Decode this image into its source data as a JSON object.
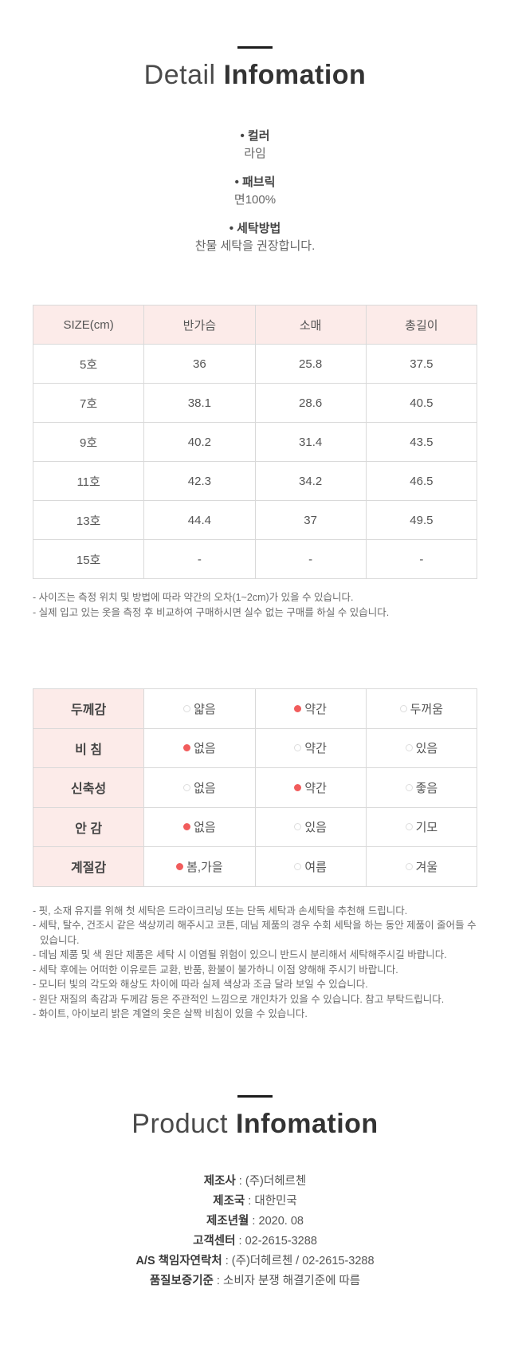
{
  "colors": {
    "header_pink": "#fcebe9",
    "radio_red": "#f15c5c",
    "title_dark": "#333333",
    "body_gray": "#555555"
  },
  "detail_section": {
    "title_light": "Detail",
    "title_bold": "Infomation",
    "specs": [
      {
        "label": "• 컬러",
        "value": "라임"
      },
      {
        "label": "• 패브릭",
        "value": "면100%"
      },
      {
        "label": "• 세탁방법",
        "value": "찬물 세탁을 권장합니다."
      }
    ]
  },
  "size_table": {
    "headers": [
      "SIZE(cm)",
      "반가슴",
      "소매",
      "총길이"
    ],
    "rows": [
      [
        "5호",
        "36",
        "25.8",
        "37.5"
      ],
      [
        "7호",
        "38.1",
        "28.6",
        "40.5"
      ],
      [
        "9호",
        "40.2",
        "31.4",
        "43.5"
      ],
      [
        "11호",
        "42.3",
        "34.2",
        "46.5"
      ],
      [
        "13호",
        "44.4",
        "37",
        "49.5"
      ],
      [
        "15호",
        "-",
        "-",
        "-"
      ]
    ],
    "notes": [
      "- 사이즈는 측정 위치 및 방법에 따라 약간의 오차(1~2cm)가 있을 수 있습니다.",
      "- 실제 입고 있는 옷을 측정 후 비교하여 구매하시면 실수 없는 구매를 하실 수 있습니다."
    ]
  },
  "fabric_table": {
    "rows": [
      {
        "label": "두께감",
        "options": [
          {
            "text": "얇음",
            "selected": false
          },
          {
            "text": "약간",
            "selected": true
          },
          {
            "text": "두꺼움",
            "selected": false
          }
        ]
      },
      {
        "label": "비 침",
        "options": [
          {
            "text": "없음",
            "selected": true
          },
          {
            "text": "약간",
            "selected": false
          },
          {
            "text": "있음",
            "selected": false
          }
        ]
      },
      {
        "label": "신축성",
        "options": [
          {
            "text": "없음",
            "selected": false
          },
          {
            "text": "약간",
            "selected": true
          },
          {
            "text": "좋음",
            "selected": false
          }
        ]
      },
      {
        "label": "안 감",
        "options": [
          {
            "text": "없음",
            "selected": true
          },
          {
            "text": "있음",
            "selected": false
          },
          {
            "text": "기모",
            "selected": false
          }
        ]
      },
      {
        "label": "계절감",
        "options": [
          {
            "text": "봄,가을",
            "selected": true
          },
          {
            "text": "여름",
            "selected": false
          },
          {
            "text": "겨울",
            "selected": false
          }
        ]
      }
    ]
  },
  "care_notes": [
    "- 핏, 소재 유지를 위해 첫 세탁은 드라이크리닝 또는 단독 세탁과 손세탁을 추천해 드립니다.",
    "- 세탁, 탈수, 건조시 같은 색상끼리 해주시고 코튼, 데님 제품의 경우 수회 세탁을 하는 동안 제품이 줄어들 수 있습니다.",
    "- 데님 제품 및 색 원단 제품은 세탁 시 이염될 위험이 있으니 반드시 분리해서 세탁해주시길 바랍니다.",
    "- 세탁 후에는 어떠한 이유로든 교환, 반품, 환불이 불가하니 이점 양해해 주시기 바랍니다.",
    "- 모니터 빛의 각도와 해상도 차이에 따라 실제 색상과 조금 달라 보일 수 있습니다.",
    "- 원단 재질의 촉감과 두께감 등은 주관적인 느낌으로 개인차가 있을 수 있습니다. 참고 부탁드립니다.",
    "- 화이트, 아이보리 밝은 계열의 옷은 살짝 비침이 있을 수 있습니다."
  ],
  "product_section": {
    "title_light": "Product",
    "title_bold": "Infomation",
    "info": [
      {
        "label": "제조사",
        "value": "(주)더헤르첸"
      },
      {
        "label": "제조국",
        "value": "대한민국"
      },
      {
        "label": "제조년월",
        "value": "2020. 08"
      },
      {
        "label": "고객센터",
        "value": "02-2615-3288"
      },
      {
        "label": "A/S 책임자연락처",
        "value": "(주)더헤르첸 / 02-2615-3288"
      },
      {
        "label": "품질보증기준",
        "value": "소비자 분쟁 해결기준에 따름"
      }
    ]
  }
}
